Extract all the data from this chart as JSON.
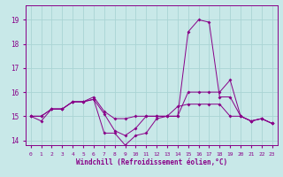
{
  "xlabel": "Windchill (Refroidissement éolien,°C)",
  "background_color": "#c8e8e8",
  "grid_color": "#aad4d4",
  "line_color": "#880088",
  "x_values": [
    0,
    1,
    2,
    3,
    4,
    5,
    6,
    7,
    8,
    9,
    10,
    11,
    12,
    13,
    14,
    15,
    16,
    17,
    18,
    19,
    20,
    21,
    22,
    23
  ],
  "line1": [
    15.0,
    15.0,
    15.3,
    15.3,
    15.6,
    15.6,
    15.8,
    15.2,
    14.9,
    14.9,
    15.0,
    15.0,
    15.0,
    15.0,
    15.0,
    16.0,
    16.0,
    16.0,
    16.0,
    16.5,
    15.0,
    14.8,
    14.9,
    14.7
  ],
  "line2": [
    15.0,
    14.8,
    15.3,
    15.3,
    15.6,
    15.6,
    15.7,
    14.3,
    14.3,
    13.8,
    14.2,
    14.3,
    14.9,
    15.0,
    15.0,
    18.5,
    19.0,
    18.9,
    15.8,
    15.8,
    15.0,
    14.8,
    14.9,
    14.7
  ],
  "line3": [
    15.0,
    15.0,
    15.3,
    15.3,
    15.6,
    15.6,
    15.7,
    15.1,
    14.4,
    14.2,
    14.5,
    15.0,
    15.0,
    15.0,
    15.4,
    15.5,
    15.5,
    15.5,
    15.5,
    15.0,
    15.0,
    14.8,
    14.9,
    14.7
  ],
  "ylim": [
    13.8,
    19.6
  ],
  "yticks": [
    14,
    15,
    16,
    17,
    18,
    19
  ],
  "xlim": [
    -0.5,
    23.5
  ]
}
